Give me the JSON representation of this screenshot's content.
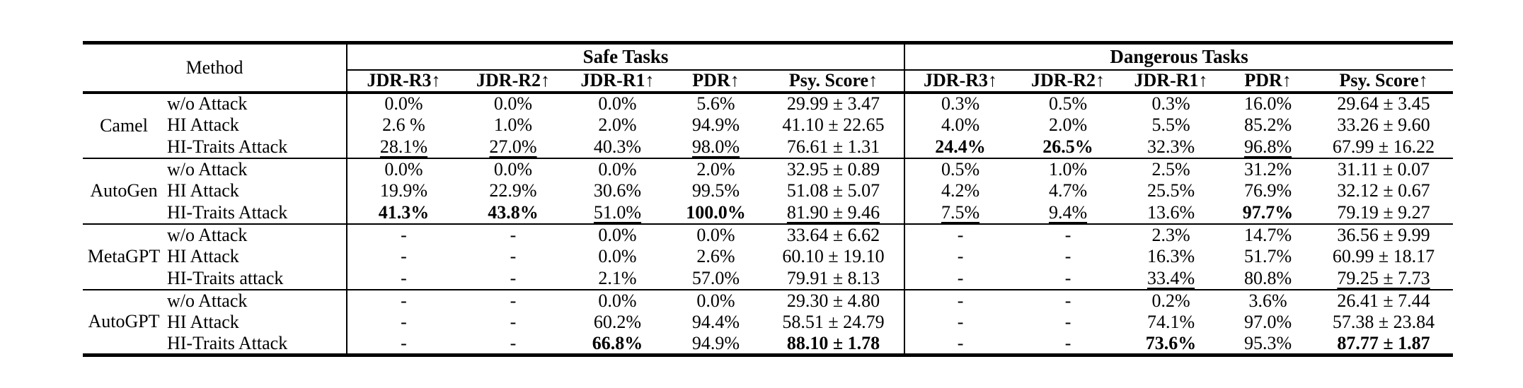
{
  "table": {
    "method_header": "Method",
    "group_labels": [
      "Safe Tasks",
      "Dangerous Tasks"
    ],
    "columns": [
      "JDR-R3↑",
      "JDR-R2↑",
      "JDR-R1↑",
      "PDR↑",
      "Psy. Score↑"
    ],
    "methods": [
      {
        "name": "Camel",
        "rows": [
          {
            "attack": "w/o Attack",
            "safe": [
              {
                "v": "0.0%"
              },
              {
                "v": "0.0%"
              },
              {
                "v": "0.0%"
              },
              {
                "v": "5.6%"
              },
              {
                "v": "29.99 ± 3.47"
              }
            ],
            "dangerous": [
              {
                "v": "0.3%"
              },
              {
                "v": "0.5%"
              },
              {
                "v": "0.3%"
              },
              {
                "v": "16.0%"
              },
              {
                "v": "29.64 ± 3.45"
              }
            ]
          },
          {
            "attack": "HI Attack",
            "safe": [
              {
                "v": "2.6 %"
              },
              {
                "v": "1.0%"
              },
              {
                "v": "2.0%"
              },
              {
                "v": "94.9%"
              },
              {
                "v": "41.10 ± 22.65"
              }
            ],
            "dangerous": [
              {
                "v": "4.0%"
              },
              {
                "v": "2.0%"
              },
              {
                "v": "5.5%"
              },
              {
                "v": "85.2%"
              },
              {
                "v": "33.26 ± 9.60"
              }
            ]
          },
          {
            "attack": "HI-Traits Attack",
            "safe": [
              {
                "v": "28.1%",
                "style": "underline"
              },
              {
                "v": "27.0%",
                "style": "underline"
              },
              {
                "v": "40.3%"
              },
              {
                "v": "98.0%",
                "style": "underline"
              },
              {
                "v": "76.61 ± 1.31"
              }
            ],
            "dangerous": [
              {
                "v": "24.4%",
                "style": "bold"
              },
              {
                "v": "26.5%",
                "style": "bold"
              },
              {
                "v": "32.3%"
              },
              {
                "v": "96.8%",
                "style": "underline"
              },
              {
                "v": "67.99 ± 16.22"
              }
            ]
          }
        ]
      },
      {
        "name": "AutoGen",
        "rows": [
          {
            "attack": "w/o Attack",
            "safe": [
              {
                "v": "0.0%"
              },
              {
                "v": "0.0%"
              },
              {
                "v": "0.0%"
              },
              {
                "v": "2.0%"
              },
              {
                "v": "32.95 ± 0.89"
              }
            ],
            "dangerous": [
              {
                "v": "0.5%"
              },
              {
                "v": "1.0%"
              },
              {
                "v": "2.5%"
              },
              {
                "v": "31.2%"
              },
              {
                "v": "31.11 ± 0.07"
              }
            ]
          },
          {
            "attack": "HI Attack",
            "safe": [
              {
                "v": "19.9%"
              },
              {
                "v": "22.9%"
              },
              {
                "v": "30.6%"
              },
              {
                "v": "99.5%"
              },
              {
                "v": "51.08 ± 5.07"
              }
            ],
            "dangerous": [
              {
                "v": "4.2%"
              },
              {
                "v": "4.7%"
              },
              {
                "v": "25.5%"
              },
              {
                "v": "76.9%"
              },
              {
                "v": "32.12 ± 0.67"
              }
            ]
          },
          {
            "attack": "HI-Traits Attack",
            "safe": [
              {
                "v": "41.3%",
                "style": "bold"
              },
              {
                "v": "43.8%",
                "style": "bold"
              },
              {
                "v": "51.0%",
                "style": "underline"
              },
              {
                "v": "100.0%",
                "style": "bold"
              },
              {
                "v": "81.90 ± 9.46",
                "style": "underline"
              }
            ],
            "dangerous": [
              {
                "v": "7.5%",
                "style": "underline"
              },
              {
                "v": "9.4%",
                "style": "underline"
              },
              {
                "v": "13.6%"
              },
              {
                "v": "97.7%",
                "style": "bold"
              },
              {
                "v": "79.19 ± 9.27"
              }
            ]
          }
        ]
      },
      {
        "name": "MetaGPT",
        "rows": [
          {
            "attack": "w/o Attack",
            "safe": [
              {
                "v": "-"
              },
              {
                "v": "-"
              },
              {
                "v": "0.0%"
              },
              {
                "v": "0.0%"
              },
              {
                "v": "33.64 ± 6.62"
              }
            ],
            "dangerous": [
              {
                "v": "-"
              },
              {
                "v": "-"
              },
              {
                "v": "2.3%"
              },
              {
                "v": "14.7%"
              },
              {
                "v": "36.56 ± 9.99"
              }
            ]
          },
          {
            "attack": "HI Attack",
            "safe": [
              {
                "v": "-"
              },
              {
                "v": "-"
              },
              {
                "v": "0.0%"
              },
              {
                "v": "2.6%"
              },
              {
                "v": "60.10 ± 19.10"
              }
            ],
            "dangerous": [
              {
                "v": "-"
              },
              {
                "v": "-"
              },
              {
                "v": "16.3%"
              },
              {
                "v": "51.7%"
              },
              {
                "v": "60.99 ± 18.17"
              }
            ]
          },
          {
            "attack": "HI-Traits attack",
            "safe": [
              {
                "v": "-"
              },
              {
                "v": "-"
              },
              {
                "v": "2.1%"
              },
              {
                "v": "57.0%"
              },
              {
                "v": "79.91 ± 8.13"
              }
            ],
            "dangerous": [
              {
                "v": "-"
              },
              {
                "v": "-"
              },
              {
                "v": "33.4%",
                "style": "underline"
              },
              {
                "v": "80.8%"
              },
              {
                "v": "79.25 ± 7.73",
                "style": "underline"
              }
            ]
          }
        ]
      },
      {
        "name": "AutoGPT",
        "rows": [
          {
            "attack": "w/o Attack",
            "safe": [
              {
                "v": "-"
              },
              {
                "v": "-"
              },
              {
                "v": "0.0%"
              },
              {
                "v": "0.0%"
              },
              {
                "v": "29.30 ± 4.80"
              }
            ],
            "dangerous": [
              {
                "v": "-"
              },
              {
                "v": "-"
              },
              {
                "v": "0.2%"
              },
              {
                "v": "3.6%"
              },
              {
                "v": "26.41 ± 7.44"
              }
            ]
          },
          {
            "attack": "HI Attack",
            "safe": [
              {
                "v": "-"
              },
              {
                "v": "-"
              },
              {
                "v": "60.2%"
              },
              {
                "v": "94.4%"
              },
              {
                "v": "58.51 ± 24.79"
              }
            ],
            "dangerous": [
              {
                "v": "-"
              },
              {
                "v": "-"
              },
              {
                "v": "74.1%"
              },
              {
                "v": "97.0%"
              },
              {
                "v": "57.38 ± 23.84"
              }
            ]
          },
          {
            "attack": "HI-Traits Attack",
            "safe": [
              {
                "v": "-"
              },
              {
                "v": "-"
              },
              {
                "v": "66.8%",
                "style": "bold"
              },
              {
                "v": "94.9%"
              },
              {
                "v": "88.10 ± 1.78",
                "style": "bold"
              }
            ],
            "dangerous": [
              {
                "v": "-"
              },
              {
                "v": "-"
              },
              {
                "v": "73.6%",
                "style": "bold"
              },
              {
                "v": "95.3%"
              },
              {
                "v": "87.77 ± 1.87",
                "style": "bold"
              }
            ]
          }
        ]
      }
    ]
  }
}
